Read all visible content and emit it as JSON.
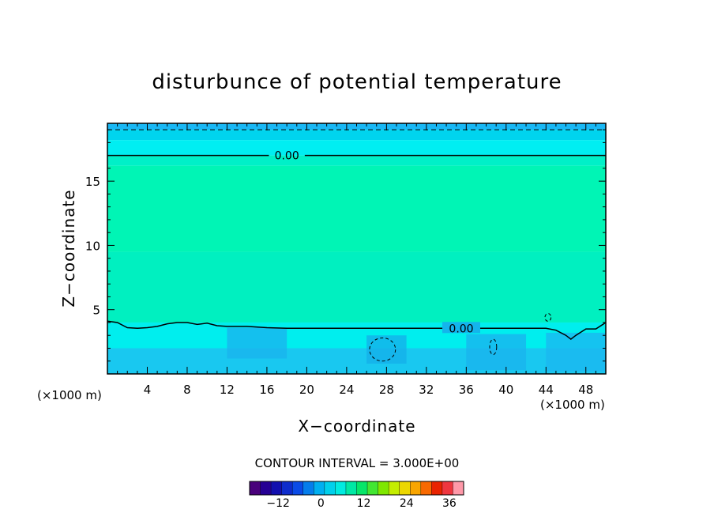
{
  "chart_data": {
    "type": "heatmap",
    "title": "disturbunce of potential temperature",
    "xlabel": "X−coordinate",
    "ylabel": "Z−coordinate",
    "x_unit_left": "(×1000 m)",
    "x_unit_right": "(×1000 m)",
    "xlim": [
      0,
      50
    ],
    "ylim": [
      0,
      19.5
    ],
    "x_ticks": [
      4,
      8,
      12,
      16,
      20,
      24,
      28,
      32,
      36,
      40,
      44,
      48
    ],
    "x_tick_labels": [
      "4",
      "8",
      "12",
      "16",
      "20",
      "24",
      "28",
      "32",
      "36",
      "40",
      "44",
      "48"
    ],
    "y_ticks": [
      5,
      10,
      15
    ],
    "y_tick_labels": [
      "5",
      "10",
      "15"
    ],
    "contour_interval_text": "CONTOUR INTERVAL = 3.000E+00",
    "contour_labels": [
      "0.00",
      "0.00"
    ],
    "zero_contour_upper_z": 17.0,
    "zero_contour_lower": [
      [
        0,
        4.1
      ],
      [
        1,
        4.0
      ],
      [
        2,
        3.6
      ],
      [
        3,
        3.55
      ],
      [
        4,
        3.6
      ],
      [
        5,
        3.7
      ],
      [
        6,
        3.9
      ],
      [
        7,
        4.0
      ],
      [
        8,
        4.0
      ],
      [
        9,
        3.85
      ],
      [
        10,
        3.95
      ],
      [
        11,
        3.75
      ],
      [
        12,
        3.7
      ],
      [
        14,
        3.7
      ],
      [
        16,
        3.6
      ],
      [
        18,
        3.55
      ],
      [
        20,
        3.55
      ],
      [
        24,
        3.55
      ],
      [
        28,
        3.55
      ],
      [
        32,
        3.55
      ],
      [
        36,
        3.55
      ],
      [
        40,
        3.55
      ],
      [
        44,
        3.55
      ],
      [
        45,
        3.4
      ],
      [
        46,
        3.0
      ],
      [
        46.5,
        2.7
      ],
      [
        47,
        3.0
      ],
      [
        48,
        3.5
      ],
      [
        49,
        3.5
      ],
      [
        50,
        4.0
      ]
    ],
    "negative_contours": [
      {
        "cx": 27.6,
        "cz": 1.9,
        "rx": 1.3,
        "rz": 0.9
      },
      {
        "cx": 38.7,
        "cz": 2.1,
        "rx": 0.35,
        "rz": 0.6
      },
      {
        "cx": 44.2,
        "cz": 4.4,
        "rx": 0.3,
        "rz": 0.3
      }
    ],
    "fill_bands": [
      {
        "z0": 19.0,
        "z1": 19.5,
        "color": "#19b8f5"
      },
      {
        "z0": 18.2,
        "z1": 19.0,
        "color": "#00d4ee"
      },
      {
        "z0": 17.0,
        "z1": 18.2,
        "color": "#00eef2"
      },
      {
        "z0": 16.2,
        "z1": 17.0,
        "color": "#00f0c8"
      },
      {
        "z0": 9.5,
        "z1": 16.2,
        "color": "#00f5b5"
      },
      {
        "z0": 4.0,
        "z1": 9.5,
        "color": "#00f0c0"
      },
      {
        "z0": 2.0,
        "z1": 4.0,
        "color": "#00eeee"
      },
      {
        "z0": 0,
        "z1": 2.0,
        "color": "#19c8f0"
      }
    ],
    "colorbar": {
      "range": [
        -20,
        40
      ],
      "interval": 3,
      "tick_values": [
        -12,
        0,
        12,
        24,
        36
      ],
      "tick_labels": [
        "−12",
        "0",
        "12",
        "24",
        "36"
      ]
    }
  }
}
